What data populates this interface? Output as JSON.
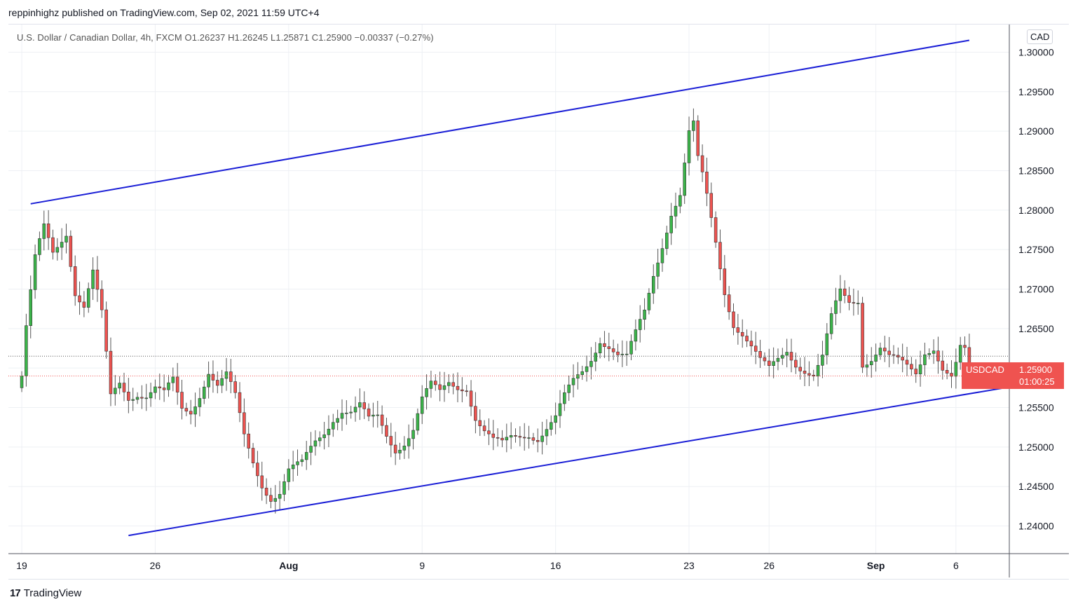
{
  "header": {
    "publisher": "reppinhighz published on TradingView.com, Sep 02, 2021 11:59 UTC+4"
  },
  "legend": {
    "symbol": "U.S. Dollar / Canadian Dollar, 4h, FXCM",
    "ohlc": "O1.26237 H1.26245 L1.25871 C1.25900 −0.00337 (−0.27%)"
  },
  "currency_badge": "CAD",
  "price_tag": {
    "symbol": "USDCAD",
    "price": "1.25900",
    "countdown": "01:00:25"
  },
  "footer": {
    "logo_mark": "17",
    "logo_text": "TradingView"
  },
  "colors": {
    "up": "#26a69a",
    "down": "#ef5350",
    "upBody": "#3bb54a",
    "line": "#1a1ed6",
    "grid": "#eef0f4"
  },
  "chart_data": {
    "type": "candlestick",
    "ylim": [
      1.2365,
      1.3035
    ],
    "y_ticks": [
      "1.24000",
      "1.24500",
      "1.25000",
      "1.25500",
      "1.26000",
      "1.26500",
      "1.27000",
      "1.27500",
      "1.28000",
      "1.28500",
      "1.29000",
      "1.29500",
      "1.30000"
    ],
    "x_ticks": [
      {
        "label": "19",
        "bar": 0
      },
      {
        "label": "26",
        "bar": 30
      },
      {
        "label": "Aug",
        "bar": 60
      },
      {
        "label": "9",
        "bar": 90
      },
      {
        "label": "16",
        "bar": 120
      },
      {
        "label": "23",
        "bar": 150
      },
      {
        "label": "26",
        "bar": 168
      },
      {
        "label": "Sep",
        "bar": 192
      },
      {
        "label": "6",
        "bar": 210
      }
    ],
    "x_range": [
      -3,
      222
    ],
    "last_close": 1.259,
    "last_prev_close": 1.2615,
    "trendlines": [
      {
        "x1": 2,
        "y1": 1.2808,
        "x2": 213,
        "y2": 1.3015
      },
      {
        "x1": 24,
        "y1": 1.2388,
        "x2": 222,
        "y2": 1.2576
      }
    ],
    "anchors": [
      [
        0,
        1.259
      ],
      [
        1,
        1.265
      ],
      [
        3,
        1.2735
      ],
      [
        5,
        1.2775
      ],
      [
        7,
        1.2745
      ],
      [
        10,
        1.2775
      ],
      [
        12,
        1.27
      ],
      [
        14,
        1.268
      ],
      [
        16,
        1.272
      ],
      [
        18,
        1.2665
      ],
      [
        20,
        1.256
      ],
      [
        22,
        1.258
      ],
      [
        24,
        1.2565
      ],
      [
        26,
        1.2572
      ],
      [
        28,
        1.2568
      ],
      [
        30,
        1.2575
      ],
      [
        32,
        1.2565
      ],
      [
        34,
        1.258
      ],
      [
        36,
        1.2545
      ],
      [
        38,
        1.2545
      ],
      [
        40,
        1.257
      ],
      [
        42,
        1.26
      ],
      [
        44,
        1.258
      ],
      [
        46,
        1.259
      ],
      [
        48,
        1.256
      ],
      [
        50,
        1.251
      ],
      [
        52,
        1.248
      ],
      [
        54,
        1.2455
      ],
      [
        56,
        1.244
      ],
      [
        58,
        1.2445
      ],
      [
        60,
        1.247
      ],
      [
        63,
        1.2475
      ],
      [
        66,
        1.2505
      ],
      [
        68,
        1.252
      ],
      [
        70,
        1.254
      ],
      [
        72,
        1.255
      ],
      [
        74,
        1.2545
      ],
      [
        76,
        1.255
      ],
      [
        78,
        1.253
      ],
      [
        80,
        1.2535
      ],
      [
        82,
        1.2515
      ],
      [
        84,
        1.25
      ],
      [
        86,
        1.251
      ],
      [
        88,
        1.2525
      ],
      [
        90,
        1.256
      ],
      [
        92,
        1.2575
      ],
      [
        94,
        1.2565
      ],
      [
        96,
        1.258
      ],
      [
        98,
        1.2578
      ],
      [
        100,
        1.258
      ],
      [
        102,
        1.254
      ],
      [
        104,
        1.252
      ],
      [
        106,
        1.2505
      ],
      [
        108,
        1.25
      ],
      [
        110,
        1.251
      ],
      [
        112,
        1.2515
      ],
      [
        114,
        1.252
      ],
      [
        116,
        1.2515
      ],
      [
        118,
        1.2525
      ],
      [
        120,
        1.2535
      ],
      [
        122,
        1.256
      ],
      [
        124,
        1.258
      ],
      [
        126,
        1.2595
      ],
      [
        128,
        1.2615
      ],
      [
        130,
        1.264
      ],
      [
        132,
        1.263
      ],
      [
        134,
        1.2615
      ],
      [
        136,
        1.261
      ],
      [
        138,
        1.264
      ],
      [
        140,
        1.267
      ],
      [
        142,
        1.272
      ],
      [
        144,
        1.276
      ],
      [
        146,
        1.28
      ],
      [
        148,
        1.282
      ],
      [
        150,
        1.2895
      ],
      [
        151,
        1.2905
      ],
      [
        152,
        1.286
      ],
      [
        153,
        1.284
      ],
      [
        154,
        1.2815
      ],
      [
        156,
        1.276
      ],
      [
        158,
        1.27
      ],
      [
        160,
        1.266
      ],
      [
        162,
        1.2645
      ],
      [
        164,
        1.2625
      ],
      [
        166,
        1.2605
      ],
      [
        168,
        1.2595
      ],
      [
        170,
        1.261
      ],
      [
        172,
        1.2625
      ],
      [
        174,
        1.261
      ],
      [
        176,
        1.26
      ],
      [
        178,
        1.259
      ],
      [
        180,
        1.261
      ],
      [
        182,
        1.266
      ],
      [
        184,
        1.2695
      ],
      [
        186,
        1.2685
      ],
      [
        188,
        1.269
      ],
      [
        189,
        1.261
      ],
      [
        191,
        1.2615
      ],
      [
        193,
        1.2625
      ],
      [
        195,
        1.261
      ],
      [
        197,
        1.2605
      ],
      [
        199,
        1.26
      ],
      [
        201,
        1.2595
      ],
      [
        203,
        1.2625
      ],
      [
        205,
        1.263
      ],
      [
        207,
        1.26
      ],
      [
        209,
        1.2585
      ],
      [
        210,
        1.26
      ],
      [
        211,
        1.262
      ],
      [
        212,
        1.2615
      ],
      [
        213,
        1.259
      ]
    ]
  }
}
